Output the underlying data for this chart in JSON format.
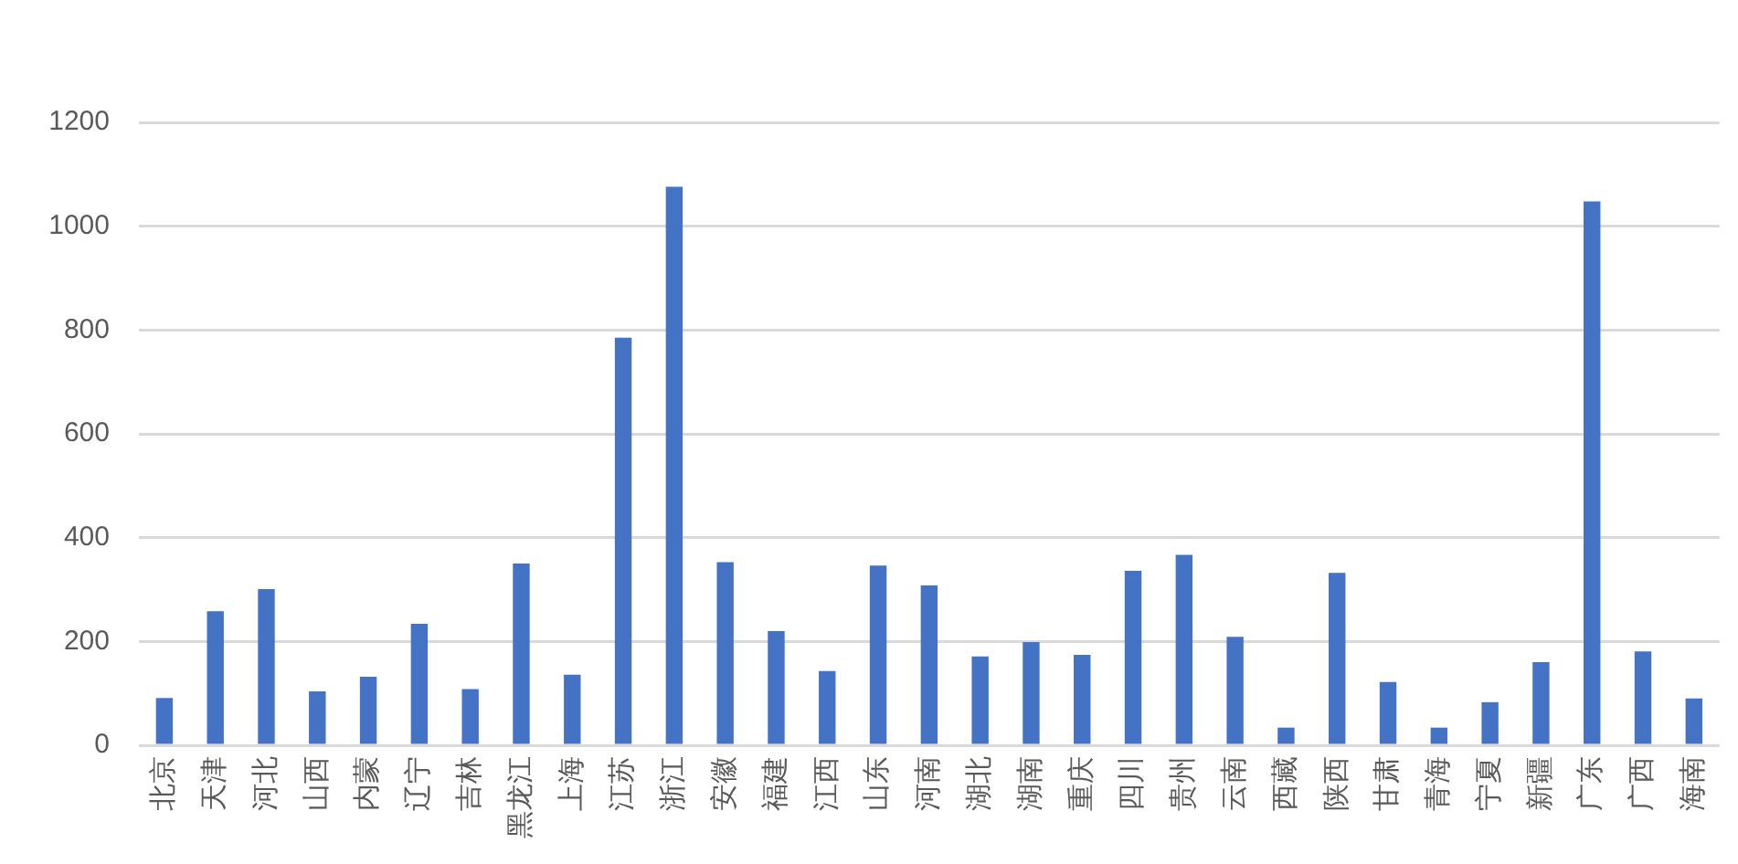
{
  "chart_data": {
    "type": "bar",
    "categories": [
      "北京",
      "天津",
      "河北",
      "山西",
      "内蒙",
      "辽宁",
      "吉林",
      "黑龙江",
      "上海",
      "江苏",
      "浙江",
      "安徽",
      "福建",
      "江西",
      "山东",
      "河南",
      "湖北",
      "湖南",
      "重庆",
      "四川",
      "贵州",
      "云南",
      "西藏",
      "陕西",
      "甘肃",
      "青海",
      "宁夏",
      "新疆",
      "广东",
      "广西",
      "海南"
    ],
    "values": [
      91,
      258,
      301,
      104,
      132,
      234,
      108,
      350,
      136,
      785,
      1076,
      353,
      220,
      143,
      346,
      308,
      171,
      199,
      174,
      336,
      367,
      209,
      34,
      332,
      122,
      34,
      83,
      160,
      1048,
      181,
      90
    ],
    "color": "#4472c4",
    "ylim": [
      0,
      1200
    ],
    "yticks": [
      0,
      200,
      400,
      600,
      800,
      1000,
      1200
    ],
    "grid": "y"
  }
}
